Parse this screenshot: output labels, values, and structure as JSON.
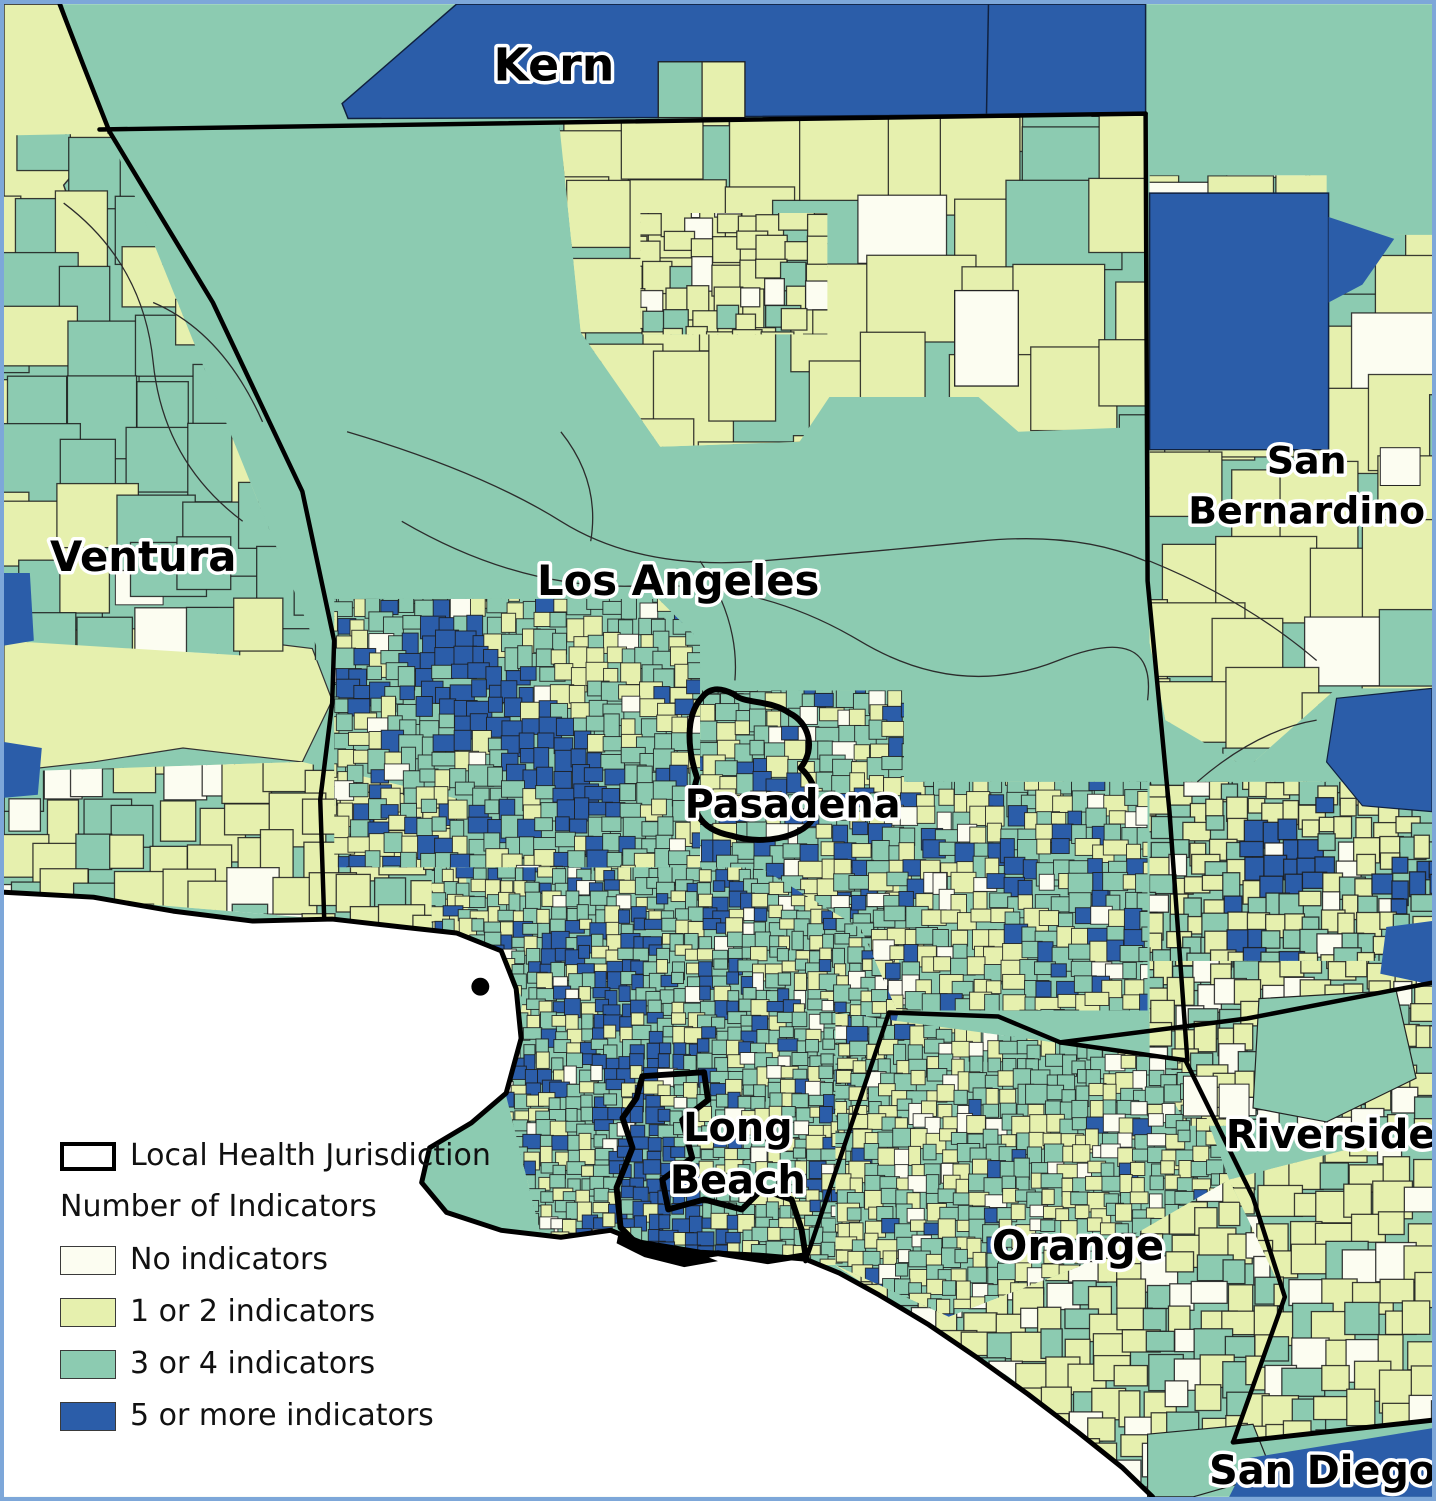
{
  "map": {
    "region_labels": [
      {
        "id": "kern",
        "lines": [
          "Kern"
        ]
      },
      {
        "id": "ventura",
        "lines": [
          "Ventura"
        ]
      },
      {
        "id": "los-angeles",
        "lines": [
          "Los Angeles"
        ]
      },
      {
        "id": "san-bernardino",
        "lines": [
          "San",
          "Bernardino"
        ]
      },
      {
        "id": "pasadena",
        "lines": [
          "Pasadena"
        ]
      },
      {
        "id": "long-beach",
        "lines": [
          "Long",
          "Beach"
        ]
      },
      {
        "id": "orange",
        "lines": [
          "Orange"
        ]
      },
      {
        "id": "riverside",
        "lines": [
          "Riverside"
        ]
      },
      {
        "id": "san-diego",
        "lines": [
          "San Diego"
        ]
      }
    ]
  },
  "legend": {
    "jurisdiction_label": "Local Health Jurisdiction",
    "heading": "Number of Indicators",
    "items": [
      {
        "label": "No indicators",
        "color": "#FCFDF1"
      },
      {
        "label": "1 or 2 indicators",
        "color": "#E6F0AE"
      },
      {
        "label": "3 or 4 indicators",
        "color": "#8CCBB1"
      },
      {
        "label": "5 or more indicators",
        "color": "#2B5DA9"
      }
    ]
  },
  "colors": {
    "none": "#FCFDF1",
    "low": "#E6F0AE",
    "mid": "#8CCBB1",
    "high": "#2B5DA9",
    "ocean": "#FFFFFF",
    "tract_line": "#1b1b1b",
    "boundary": "#000000",
    "frame": "#7DA7D9"
  }
}
